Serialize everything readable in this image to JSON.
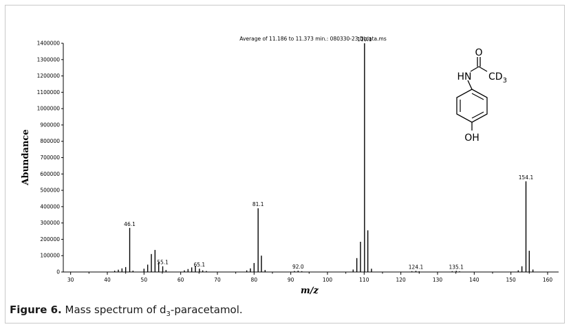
{
  "chart_data": {
    "type": "bar",
    "title": "Average of 11.186 to 11.373 min.: 080330-23.D\\data.ms",
    "xlabel": "m/z",
    "ylabel": "Abundance",
    "xlim": [
      28,
      163
    ],
    "ylim": [
      0,
      1400000
    ],
    "xticks": [
      30,
      40,
      50,
      60,
      70,
      80,
      90,
      100,
      110,
      120,
      130,
      140,
      150,
      160
    ],
    "yticks": [
      0,
      100000,
      200000,
      300000,
      400000,
      500000,
      600000,
      700000,
      800000,
      900000,
      1000000,
      1100000,
      1200000,
      1300000,
      1400000
    ],
    "grid": false,
    "peaks": [
      {
        "x": 42,
        "y": 8000
      },
      {
        "x": 43,
        "y": 14000
      },
      {
        "x": 44,
        "y": 22000
      },
      {
        "x": 45,
        "y": 30000
      },
      {
        "x": 46.1,
        "y": 270000
      },
      {
        "x": 47,
        "y": 8000
      },
      {
        "x": 50,
        "y": 20000
      },
      {
        "x": 51,
        "y": 45000
      },
      {
        "x": 52,
        "y": 110000
      },
      {
        "x": 53,
        "y": 135000
      },
      {
        "x": 54,
        "y": 60000
      },
      {
        "x": 55.1,
        "y": 35000
      },
      {
        "x": 56,
        "y": 12000
      },
      {
        "x": 61,
        "y": 10000
      },
      {
        "x": 62,
        "y": 18000
      },
      {
        "x": 63,
        "y": 28000
      },
      {
        "x": 64,
        "y": 38000
      },
      {
        "x": 65.1,
        "y": 20000
      },
      {
        "x": 66,
        "y": 10000
      },
      {
        "x": 67,
        "y": 6000
      },
      {
        "x": 78,
        "y": 10000
      },
      {
        "x": 79,
        "y": 22000
      },
      {
        "x": 80,
        "y": 55000
      },
      {
        "x": 81.1,
        "y": 390000
      },
      {
        "x": 82,
        "y": 100000
      },
      {
        "x": 83,
        "y": 12000
      },
      {
        "x": 91,
        "y": 6000
      },
      {
        "x": 92.0,
        "y": 8000
      },
      {
        "x": 93,
        "y": 5000
      },
      {
        "x": 107,
        "y": 15000
      },
      {
        "x": 108,
        "y": 85000
      },
      {
        "x": 109,
        "y": 185000
      },
      {
        "x": 110.1,
        "y": 1400000
      },
      {
        "x": 111,
        "y": 255000
      },
      {
        "x": 112,
        "y": 20000
      },
      {
        "x": 123,
        "y": 5000
      },
      {
        "x": 124.1,
        "y": 7000
      },
      {
        "x": 125,
        "y": 4000
      },
      {
        "x": 134,
        "y": 5000
      },
      {
        "x": 135.1,
        "y": 7000
      },
      {
        "x": 136,
        "y": 4000
      },
      {
        "x": 152,
        "y": 10000
      },
      {
        "x": 153,
        "y": 35000
      },
      {
        "x": 154.1,
        "y": 555000
      },
      {
        "x": 155,
        "y": 130000
      },
      {
        "x": 156,
        "y": 15000
      }
    ],
    "peak_labels": [
      {
        "x": 46.1,
        "y": 270000,
        "text": "46.1"
      },
      {
        "x": 55.1,
        "y": 35000,
        "text": "55.1"
      },
      {
        "x": 65.1,
        "y": 20000,
        "text": "65.1"
      },
      {
        "x": 81.1,
        "y": 390000,
        "text": "81.1"
      },
      {
        "x": 92.0,
        "y": 8000,
        "text": "92.0"
      },
      {
        "x": 110.1,
        "y": 1400000,
        "text": "110.1"
      },
      {
        "x": 124.1,
        "y": 7000,
        "text": "124.1"
      },
      {
        "x": 135.1,
        "y": 7000,
        "text": "135.1"
      },
      {
        "x": 154.1,
        "y": 555000,
        "text": "154.1"
      }
    ]
  },
  "structure": {
    "oxygen_label": "O",
    "nh_label": "HN",
    "cd_label": "CD",
    "cd_subscript": "3",
    "oh_label": "OH"
  },
  "caption": {
    "label": "Figure 6.",
    "text_before": " Mass spectrum of d",
    "subscript": "3",
    "text_after": "-paracetamol."
  }
}
